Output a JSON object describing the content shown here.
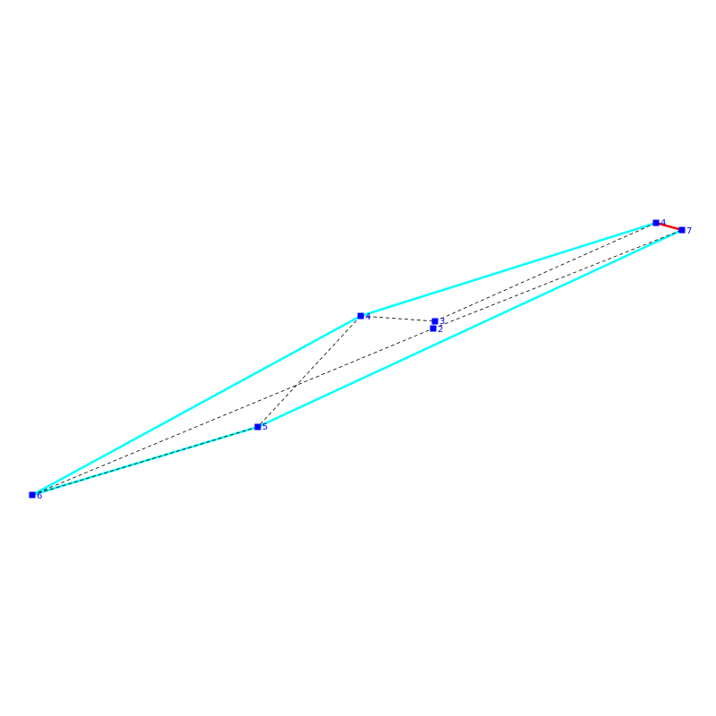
{
  "nodes": [
    {
      "label": "4"
    },
    {
      "label": "3"
    },
    {
      "label": "2"
    },
    {
      "label": "5"
    },
    {
      "label": "6"
    },
    {
      "label": "4"
    },
    {
      "label": "7"
    }
  ]
}
